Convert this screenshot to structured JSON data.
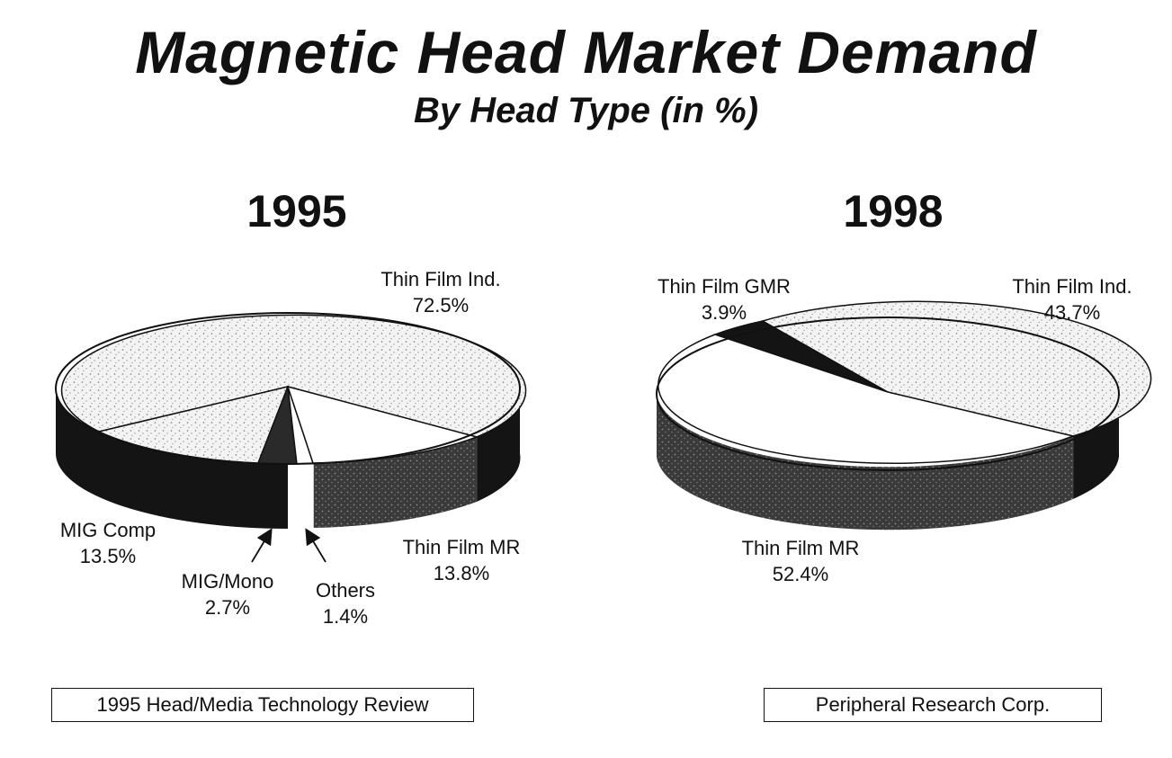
{
  "title": "Magnetic Head Market Demand",
  "subtitle": "By Head Type (in %)",
  "source_left": "1995 Head/Media Technology Review",
  "source_right": "Peripheral Research Corp.",
  "chart_data": [
    {
      "type": "pie",
      "title": "1995",
      "slices": [
        {
          "label": "Thin Film Ind.",
          "value": 72.5,
          "value_label": "72.5%"
        },
        {
          "label": "MIG Comp",
          "value": 13.5,
          "value_label": "13.5%"
        },
        {
          "label": "MIG/Mono",
          "value": 2.7,
          "value_label": "2.7%"
        },
        {
          "label": "Others",
          "value": 1.4,
          "value_label": "1.4%"
        },
        {
          "label": "Thin Film MR",
          "value": 13.8,
          "value_label": "13.8%"
        }
      ]
    },
    {
      "type": "pie",
      "title": "1998",
      "slices": [
        {
          "label": "Thin Film GMR",
          "value": 3.9,
          "value_label": "3.9%"
        },
        {
          "label": "Thin Film Ind.",
          "value": 43.7,
          "value_label": "43.7%"
        },
        {
          "label": "Thin Film MR",
          "value": 52.4,
          "value_label": "52.4%"
        }
      ]
    }
  ]
}
